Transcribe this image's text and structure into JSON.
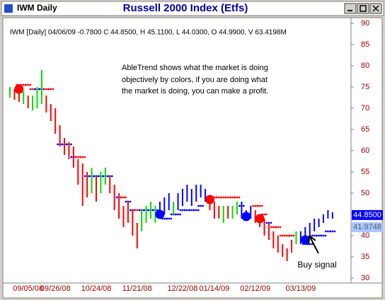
{
  "chart_data": {
    "type": "ohlc",
    "window_title": "IWM Daily",
    "title": "Russell 2000 Index (Etfs)",
    "info": "IWM [Daily] 04/06/09 -0.7800 C 44.8500, H 45.1100, L 44.0300, O 44.9900, V 63.4198M",
    "annotation": [
      "AbleTrend shows what the market is doing",
      "objectively by colors, if you are doing what",
      "the market is doing, you can make a profit."
    ],
    "signal_note": "Buy signal",
    "categories": [
      null,
      null,
      null,
      null,
      "09/05/08",
      null,
      null,
      null,
      null,
      null,
      "09/26/08",
      null,
      null,
      null,
      null,
      null,
      null,
      null,
      null,
      "10/24/08",
      null,
      null,
      null,
      null,
      null,
      null,
      null,
      null,
      "11/21/08",
      null,
      null,
      null,
      null,
      null,
      null,
      null,
      null,
      null,
      "12/22/08",
      null,
      null,
      null,
      null,
      null,
      null,
      "01/14/09",
      null,
      null,
      null,
      null,
      null,
      null,
      null,
      null,
      "02/12/09",
      null,
      null,
      null,
      null,
      null,
      null,
      null,
      null,
      null,
      "03/13/09",
      null,
      null,
      null,
      null,
      null,
      null,
      null
    ],
    "high": [
      75,
      74.5,
      74,
      74,
      73,
      73,
      75,
      79,
      73,
      71,
      70,
      66,
      63,
      62,
      61,
      58,
      57,
      55,
      56,
      54,
      55,
      56,
      54,
      52,
      50,
      47,
      48,
      46,
      43,
      46,
      47,
      48,
      47,
      48,
      49,
      50,
      48,
      50,
      51,
      52,
      51,
      52,
      52,
      51,
      49,
      48,
      47,
      47,
      47,
      47,
      48,
      48,
      46,
      47,
      46,
      45,
      44,
      43,
      41,
      40,
      38,
      37,
      39,
      41,
      41,
      42,
      43,
      44,
      44,
      45,
      46,
      45.5
    ],
    "low": [
      72.5,
      72,
      71.5,
      71,
      70,
      69.5,
      70,
      71,
      69,
      67,
      64,
      61,
      59,
      58,
      56,
      52,
      47,
      49,
      50,
      48,
      50,
      52,
      50,
      46,
      44,
      42,
      43,
      40,
      37,
      41,
      43,
      44,
      43,
      44,
      45,
      46,
      45,
      46,
      47,
      48,
      47,
      48,
      49,
      48,
      46,
      44,
      44,
      43,
      44,
      44,
      45,
      44,
      44,
      44,
      43,
      42,
      40,
      39,
      37,
      36,
      35,
      34,
      36,
      38,
      38,
      39,
      40,
      41,
      42,
      43,
      44,
      44
    ],
    "trend": [
      "neutral",
      "down",
      "down",
      "neutral",
      "down",
      "neutral",
      "neutral",
      "neutral",
      "down",
      "down",
      "down",
      "down",
      "down",
      "down",
      "down",
      "down",
      "down",
      "down",
      "neutral",
      "down",
      "neutral",
      "neutral",
      "down",
      "down",
      "down",
      "down",
      "down",
      "down",
      "down",
      "neutral",
      "neutral",
      "neutral",
      "neutral",
      "up",
      "up",
      "up",
      "neutral",
      "up",
      "up",
      "up",
      "up",
      "up",
      "up",
      "up",
      "down",
      "down",
      "down",
      "neutral",
      "down",
      "neutral",
      "neutral",
      "up",
      "up",
      "up",
      "down",
      "down",
      "down",
      "down",
      "down",
      "down",
      "down",
      "down",
      "down",
      "neutral",
      "up",
      "up",
      "up",
      "up",
      "up",
      "up",
      "up",
      "up"
    ],
    "palette": {
      "up": "#0000ff",
      "neutral": "#00dd00",
      "down": "#ff0000"
    },
    "stops": [
      null,
      null,
      75.5,
      75.5,
      75.5,
      74.5,
      74.5,
      74.5,
      74.5,
      74.5,
      null,
      61.5,
      61.5,
      61.5,
      58.5,
      58.5,
      58.5,
      54,
      54,
      54,
      54,
      54,
      54,
      null,
      49,
      49,
      48,
      46,
      46,
      46,
      46,
      46,
      46,
      null,
      44,
      44,
      45,
      45,
      46,
      46,
      46,
      46,
      47,
      null,
      49,
      49,
      49,
      49,
      49,
      49,
      49,
      47,
      null,
      null,
      47,
      47,
      45,
      43,
      42,
      42,
      40,
      40,
      40,
      null,
      null,
      38,
      38,
      40,
      40,
      40,
      41,
      41
    ],
    "signals": [
      {
        "index": 2,
        "value": 74.5,
        "trend": "down"
      },
      {
        "index": 33,
        "value": 45,
        "trend": "up"
      },
      {
        "index": 44,
        "value": 48.5,
        "trend": "down"
      },
      {
        "index": 52,
        "value": 44.5,
        "trend": "up"
      },
      {
        "index": 55,
        "value": 44,
        "trend": "down"
      },
      {
        "index": 65,
        "value": 39,
        "trend": "up"
      }
    ],
    "price_labels": [
      {
        "value": 44.85,
        "label": "44.8500"
      },
      {
        "value": 41.9748,
        "label": "41.9748"
      }
    ],
    "ylim": [
      30,
      90
    ],
    "yticks": [
      30,
      35,
      40,
      45,
      50,
      55,
      60,
      65,
      70,
      75,
      80,
      85,
      90
    ]
  }
}
